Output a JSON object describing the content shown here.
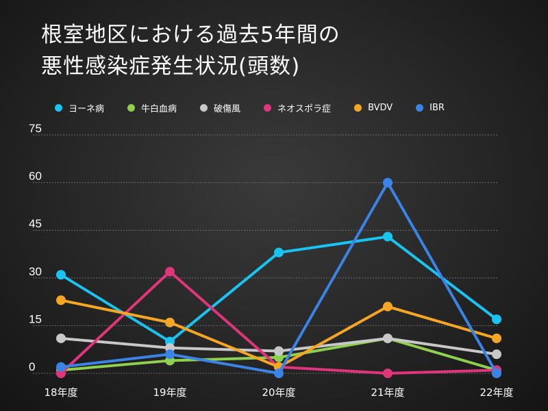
{
  "title": {
    "line1": "根室地区における過去5年間の",
    "line2": "悪性感染症発生状況(頭数)"
  },
  "chart_data": {
    "type": "line",
    "categories": [
      "18年度",
      "19年度",
      "20年度",
      "21年度",
      "22年度"
    ],
    "ylim": [
      0,
      75
    ],
    "yticks": [
      0,
      15,
      30,
      45,
      60,
      75
    ],
    "grid": true,
    "legend_position": "top",
    "series": [
      {
        "name": "ヨーネ病",
        "color": "#18c4f2",
        "values": [
          31,
          10,
          38,
          43,
          17
        ]
      },
      {
        "name": "牛白血病",
        "color": "#8fd14f",
        "values": [
          1,
          4,
          5,
          11,
          1
        ]
      },
      {
        "name": "破傷風",
        "color": "#c8c8c8",
        "values": [
          11,
          8,
          7,
          11,
          6
        ]
      },
      {
        "name": "ネオスポラ症",
        "color": "#e0357a",
        "values": [
          0,
          32,
          2,
          0,
          1
        ]
      },
      {
        "name": "BVDV",
        "color": "#f5a623",
        "values": [
          23,
          16,
          2,
          21,
          11
        ]
      },
      {
        "name": "IBR",
        "color": "#3a84e8",
        "values": [
          2,
          6,
          0,
          60,
          0
        ]
      }
    ]
  }
}
